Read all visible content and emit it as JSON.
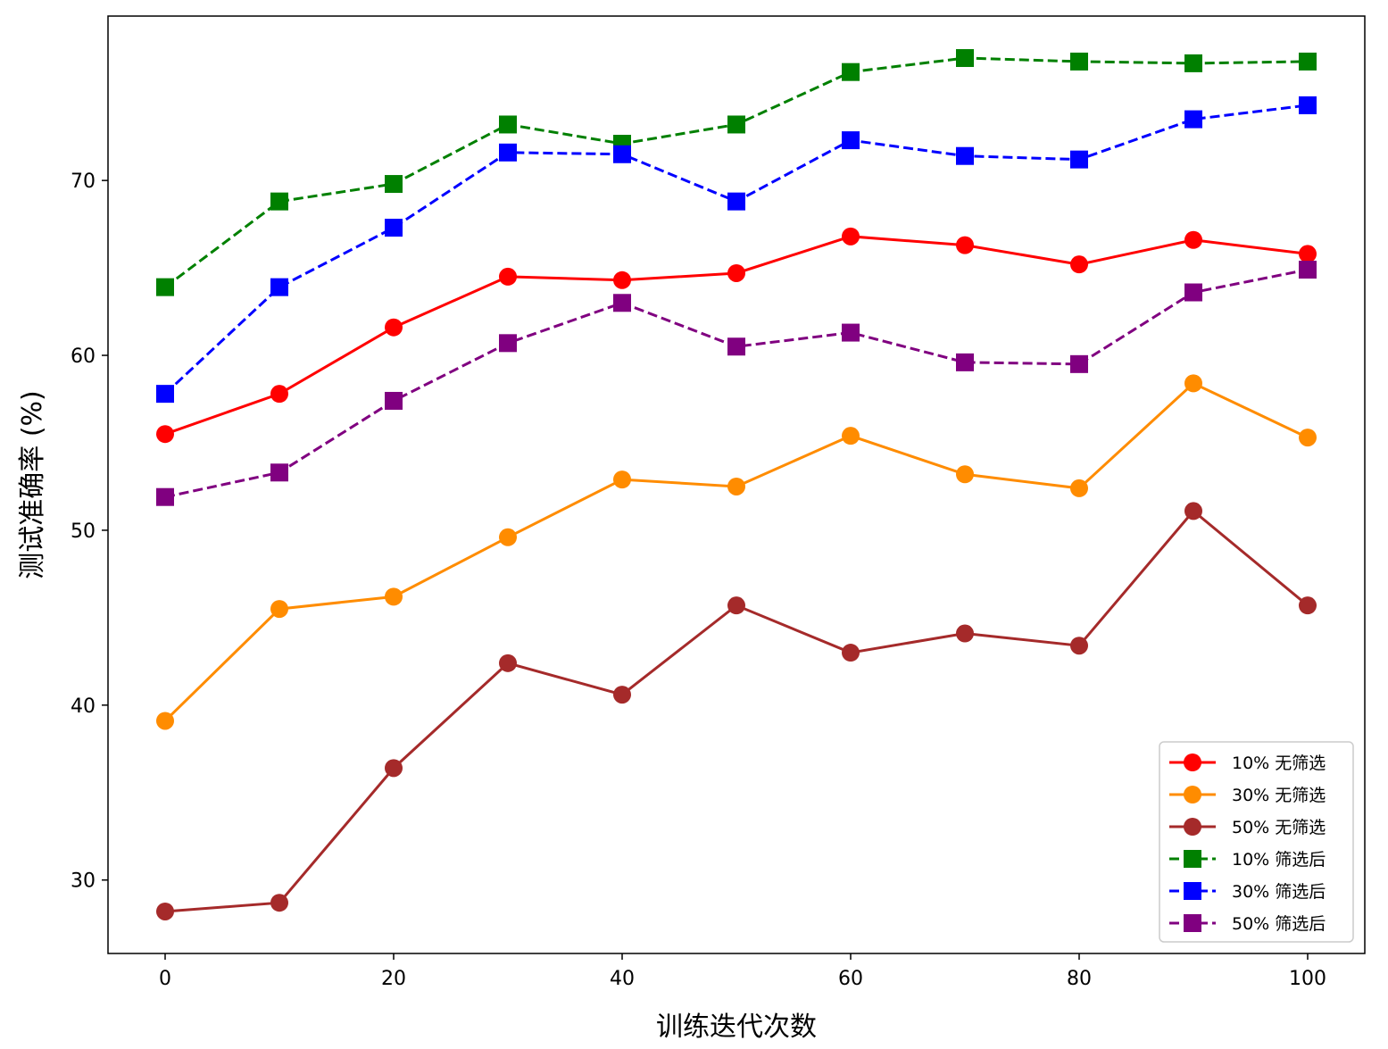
{
  "chart_data": {
    "type": "line",
    "xlabel": "训练迭代次数",
    "ylabel": "测试准确率 (%)",
    "x": [
      0,
      10,
      20,
      30,
      40,
      50,
      60,
      70,
      80,
      90,
      100
    ],
    "xlim": [
      -5,
      105
    ],
    "ylim": [
      25.8,
      79.4
    ],
    "xticks": [
      "0",
      "20",
      "40",
      "60",
      "80",
      "100"
    ],
    "yticks": [
      "30",
      "40",
      "50",
      "60",
      "70"
    ],
    "legend_position": "lower-right",
    "series": [
      {
        "name": "10% 无筛选",
        "color": "#ff0000",
        "marker": "circle",
        "linestyle": "solid",
        "values": [
          55.5,
          57.8,
          61.6,
          64.5,
          64.3,
          64.7,
          66.8,
          66.3,
          65.2,
          66.6,
          65.8
        ]
      },
      {
        "name": "30% 无筛选",
        "color": "#ff8c00",
        "marker": "circle",
        "linestyle": "solid",
        "values": [
          39.1,
          45.5,
          46.2,
          49.6,
          52.9,
          52.5,
          55.4,
          53.2,
          52.4,
          58.4,
          55.3
        ]
      },
      {
        "name": "50% 无筛选",
        "color": "#a52a2a",
        "marker": "circle",
        "linestyle": "solid",
        "values": [
          28.2,
          28.7,
          36.4,
          42.4,
          40.6,
          45.7,
          43.0,
          44.1,
          43.4,
          51.1,
          45.7
        ]
      },
      {
        "name": "10% 筛选后",
        "color": "#008000",
        "marker": "square",
        "linestyle": "dashed",
        "values": [
          63.9,
          68.8,
          69.8,
          73.2,
          72.1,
          73.2,
          76.2,
          77.0,
          76.8,
          76.7,
          76.8
        ]
      },
      {
        "name": "30% 筛选后",
        "color": "#0000ff",
        "marker": "square",
        "linestyle": "dashed",
        "values": [
          57.8,
          63.9,
          67.3,
          71.6,
          71.5,
          68.8,
          72.3,
          71.4,
          71.2,
          73.5,
          74.3
        ]
      },
      {
        "name": "50% 筛选后",
        "color": "#800080",
        "marker": "square",
        "linestyle": "dashed",
        "values": [
          51.9,
          53.3,
          57.4,
          60.7,
          63.0,
          60.5,
          61.3,
          59.6,
          59.5,
          63.6,
          64.9
        ]
      }
    ]
  }
}
